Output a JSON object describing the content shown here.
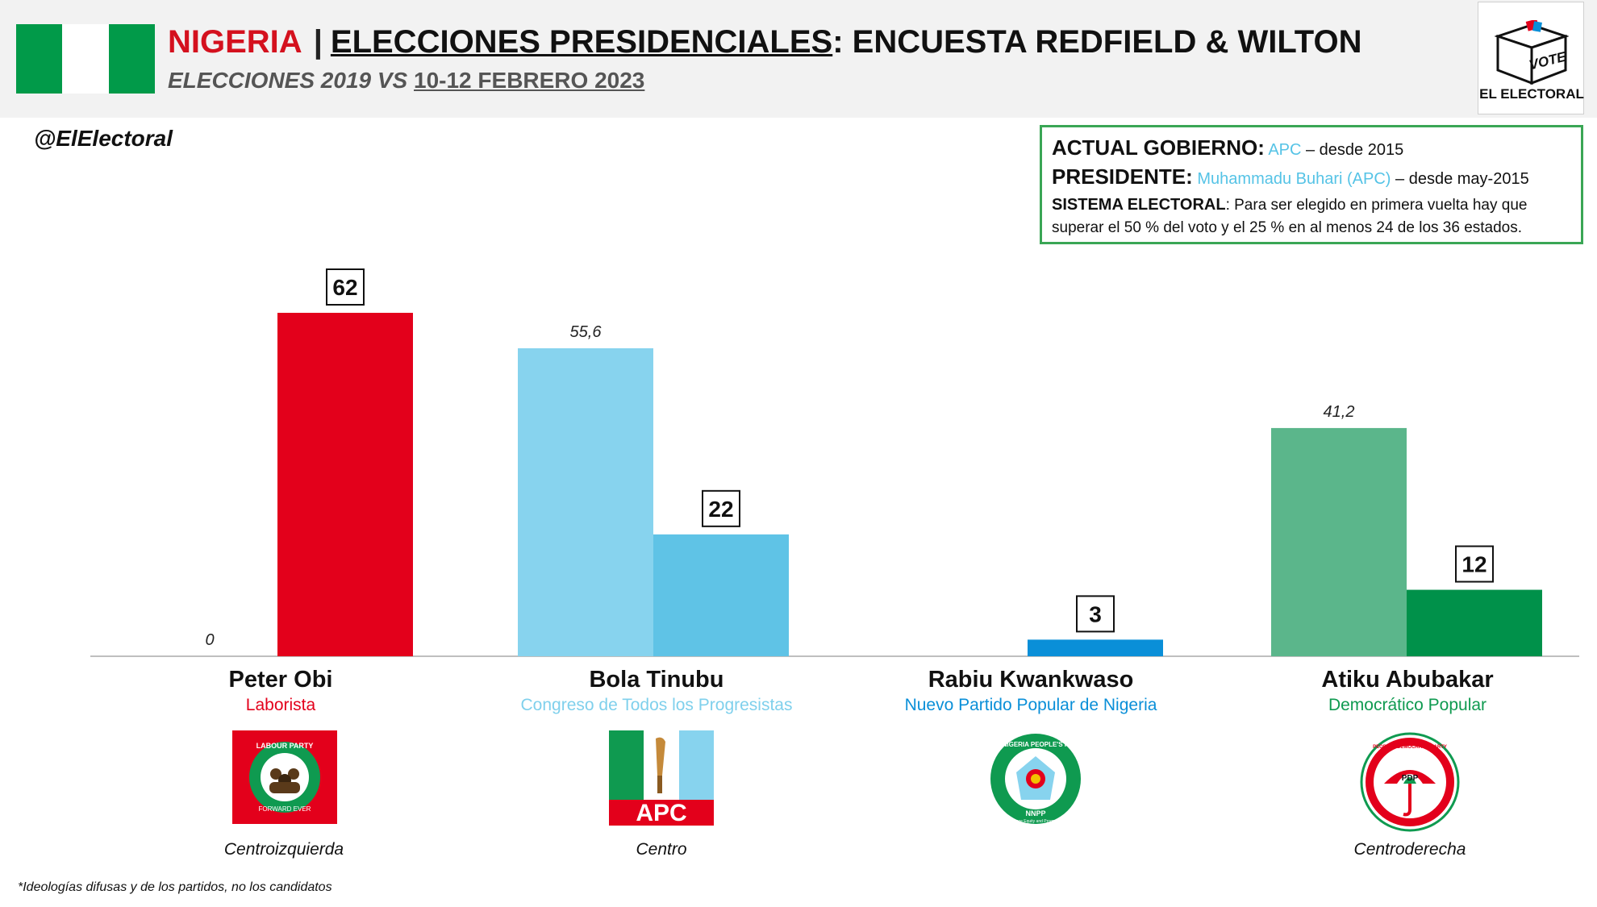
{
  "header": {
    "country": "NIGERIA",
    "separator": "|",
    "title_underlined": "ELECCIONES PRESIDENCIALES",
    "title_rest": ": ENCUESTA REDFIELD & WILTON",
    "subtitle_prefix": "ELECCIONES 2019 VS ",
    "subtitle_date": "10-12 FEBRERO 2023",
    "flag_colors": [
      "#019a49",
      "#ffffff",
      "#019a49"
    ],
    "logo_caption": "EL ELECTORAL",
    "logo_ballot_text": "VOTE",
    "logo_icon": "ballot-box-icon"
  },
  "handle": "@ElElectoral",
  "infobox": {
    "gov_label": "ACTUAL GOBIERNO:",
    "gov_value": "APC",
    "gov_note": " – desde 2015",
    "pres_label": "PRESIDENTE:",
    "pres_value": "Muhammadu Buhari (APC)",
    "pres_note": " – desde may-2015",
    "system_label": "SISTEMA ELECTORAL",
    "system_text": ": Para ser elegido en primera vuelta hay que superar el 50 % del voto y el 25 % en al menos 24 de los 36 estados."
  },
  "candidates": [
    {
      "name": "Peter Obi",
      "party": "Laborista",
      "party_color": "#e3001b",
      "ideology": "Centroizquierda",
      "logo": "labour-party-logo",
      "logo_text": [
        "LABOUR PARTY",
        "FORWARD EVER"
      ]
    },
    {
      "name": "Bola Tinubu",
      "party": "Congreso de Todos los Progresistas",
      "party_color": "#7fd0ec",
      "ideology": "Centro",
      "logo": "apc-logo",
      "logo_text": [
        "APC"
      ]
    },
    {
      "name": "Rabiu Kwankwaso",
      "party": "Nuevo Partido Popular de Nigeria",
      "party_color": "#0a8fd8",
      "ideology": "",
      "logo": "nnpp-logo",
      "logo_text": [
        "NEW NIGERIA PEOPLE'S PARTY",
        "NNPP",
        "Peace Equity and Progress"
      ]
    },
    {
      "name": "Atiku Abubakar",
      "party": "Democrático Popular",
      "party_color": "#0f9a50",
      "ideology": "Centroderecha",
      "logo": "pdp-logo",
      "logo_text": [
        "PEOPLES DEMOCRATIC PARTY",
        "PDP"
      ]
    }
  ],
  "footnote": "*Ideologías difusas y de los partidos, no los candidatos",
  "chart_data": {
    "type": "bar",
    "categories": [
      "Peter Obi",
      "Bola Tinubu",
      "Rabiu Kwankwaso",
      "Atiku Abubakar"
    ],
    "series": [
      {
        "name": "Elecciones 2019",
        "values": [
          0,
          55.6,
          null,
          41.2
        ],
        "labels": [
          "0",
          "55,6",
          "",
          "41,2"
        ],
        "colors": [
          "#e3001b",
          "#87d3ee",
          "#0a8fd8",
          "#5bb68b"
        ]
      },
      {
        "name": "10-12 febrero 2023",
        "values": [
          62,
          22,
          3,
          12
        ],
        "labels": [
          "62",
          "22",
          "3",
          "12"
        ],
        "colors": [
          "#e3001b",
          "#5fc3e6",
          "#0a8fd8",
          "#00914a"
        ]
      }
    ],
    "ylim": [
      0,
      70
    ],
    "grid": false,
    "title": "",
    "xlabel": "",
    "ylabel": ""
  }
}
